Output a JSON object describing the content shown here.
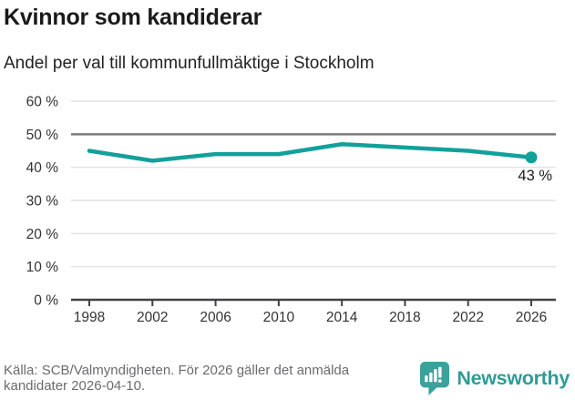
{
  "header": {
    "title": "Kvinnor som kandiderar",
    "subtitle": "Andel per val till kommunfullmäktige i Stockholm"
  },
  "chart_data": {
    "type": "line",
    "title": "Kvinnor som kandiderar",
    "subtitle": "Andel per val till kommunfullmäktige i Stockholm",
    "x": [
      1998,
      2002,
      2006,
      2010,
      2014,
      2018,
      2022,
      2026
    ],
    "xtick_labels": [
      "1998",
      "2002",
      "2006",
      "2010",
      "2014",
      "2018",
      "2022",
      "2026"
    ],
    "series": [
      {
        "name": "",
        "values": [
          45,
          42,
          44,
          44,
          47,
          46,
          45,
          43
        ]
      }
    ],
    "ylim": [
      0,
      60
    ],
    "ytick_values": [
      0,
      10,
      20,
      30,
      40,
      50,
      60
    ],
    "ytick_labels": [
      "0 %",
      "10 %",
      "20 %",
      "30 %",
      "40 %",
      "50 %",
      "60 %"
    ],
    "reference_line": 50,
    "grid": true,
    "legend_position": "none",
    "end_label": "43 %",
    "marker_on_last_point": true
  },
  "footer": {
    "source": "Källa: SCB/Valmyndigheten. För 2026 gäller det anmälda kandidater 2026-04-10.",
    "brand": "Newsworthy"
  },
  "colors": {
    "line": "#12a19a",
    "marker": "#12a19a",
    "grid": "#e4e4e4",
    "reference_line": "#7b7b7e",
    "axis": "#414144",
    "tick_text": "#333333",
    "end_label_text": "#1a1a1a",
    "title_text": "#1a1a1a",
    "subtitle_text": "#222222",
    "source_text": "#6b6b6e",
    "brand": "#2e9c95",
    "brand_icon": "#3aa29b",
    "background": "#ffffff"
  }
}
